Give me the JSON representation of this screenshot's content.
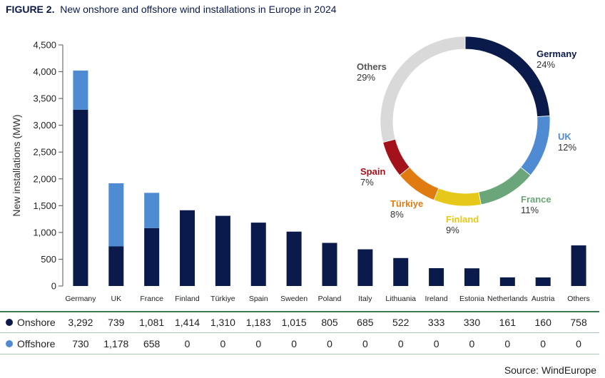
{
  "title": {
    "figure": "FIGURE 2.",
    "text": "New onshore and offshore wind installations in Europe in 2024"
  },
  "chart_data": [
    {
      "type": "bar",
      "stacked": true,
      "categories": [
        "Germany",
        "UK",
        "France",
        "Finland",
        "Türkiye",
        "Spain",
        "Sweden",
        "Poland",
        "Italy",
        "Lithuania",
        "Ireland",
        "Estonia",
        "Netherlands",
        "Austria",
        "Others"
      ],
      "series": [
        {
          "name": "Onshore",
          "color": "#0a1a4a",
          "values": [
            3292,
            739,
            1081,
            1414,
            1310,
            1183,
            1015,
            805,
            685,
            522,
            333,
            330,
            161,
            160,
            758
          ]
        },
        {
          "name": "Offshore",
          "color": "#4f8bd3",
          "values": [
            730,
            1178,
            658,
            0,
            0,
            0,
            0,
            0,
            0,
            0,
            0,
            0,
            0,
            0,
            0
          ]
        }
      ],
      "ylabel": "New installations (MW)",
      "ylim": [
        0,
        4500
      ],
      "yticks": [
        0,
        500,
        1000,
        1500,
        2000,
        2500,
        3000,
        3500,
        4000,
        4500
      ],
      "ytick_labels": [
        "0",
        "500",
        "1,000",
        "1,500",
        "2,000",
        "2,500",
        "3,000",
        "3,500",
        "4,000",
        "4,500"
      ],
      "grid": false
    },
    {
      "type": "pie",
      "donut": true,
      "slices": [
        {
          "label": "Germany",
          "value": 24,
          "display": "24%",
          "color": "#0a1a4a"
        },
        {
          "label": "UK",
          "value": 12,
          "display": "12%",
          "color": "#4f8bd3"
        },
        {
          "label": "France",
          "value": 11,
          "display": "11%",
          "color": "#6aa679"
        },
        {
          "label": "Finland",
          "value": 9,
          "display": "9%",
          "color": "#e6c81a"
        },
        {
          "label": "Türkiye",
          "value": 8,
          "display": "8%",
          "color": "#e07b12"
        },
        {
          "label": "Spain",
          "value": 7,
          "display": "7%",
          "color": "#a3111a"
        },
        {
          "label": "Others",
          "value": 29,
          "display": "29%",
          "color": "#d9d9d9"
        }
      ]
    }
  ],
  "table": {
    "rows": [
      {
        "name": "Onshore",
        "color": "#0a1a4a",
        "values": [
          "3,292",
          "739",
          "1,081",
          "1,414",
          "1,310",
          "1,183",
          "1,015",
          "805",
          "685",
          "522",
          "333",
          "330",
          "161",
          "160",
          "758"
        ]
      },
      {
        "name": "Offshore",
        "color": "#4f8bd3",
        "values": [
          "730",
          "1,178",
          "658",
          "0",
          "0",
          "0",
          "0",
          "0",
          "0",
          "0",
          "0",
          "0",
          "0",
          "0",
          "0"
        ]
      }
    ]
  },
  "source": "Source: WindEurope"
}
